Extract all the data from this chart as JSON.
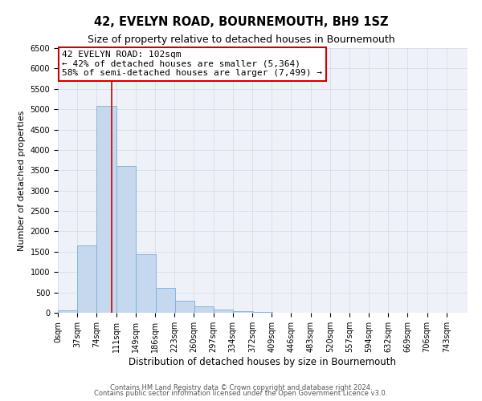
{
  "title": "42, EVELYN ROAD, BOURNEMOUTH, BH9 1SZ",
  "subtitle": "Size of property relative to detached houses in Bournemouth",
  "xlabel": "Distribution of detached houses by size in Bournemouth",
  "ylabel": "Number of detached properties",
  "bar_left_edges": [
    0,
    37,
    74,
    111,
    149,
    186,
    223,
    260,
    297,
    334,
    372,
    409,
    446,
    483,
    520,
    557,
    594,
    632,
    669,
    706
  ],
  "bar_heights": [
    50,
    1650,
    5080,
    3600,
    1430,
    610,
    300,
    150,
    80,
    30,
    10,
    5,
    2,
    0,
    0,
    0,
    0,
    0,
    0,
    0
  ],
  "bin_width": 37,
  "bar_color": "#c5d8ed",
  "bar_edge_color": "#7aafd4",
  "ylim": [
    0,
    6500
  ],
  "yticks": [
    0,
    500,
    1000,
    1500,
    2000,
    2500,
    3000,
    3500,
    4000,
    4500,
    5000,
    5500,
    6000,
    6500
  ],
  "xtick_labels": [
    "0sqm",
    "37sqm",
    "74sqm",
    "111sqm",
    "149sqm",
    "186sqm",
    "223sqm",
    "260sqm",
    "297sqm",
    "334sqm",
    "372sqm",
    "409sqm",
    "446sqm",
    "483sqm",
    "520sqm",
    "557sqm",
    "594sqm",
    "632sqm",
    "669sqm",
    "706sqm",
    "743sqm"
  ],
  "vline_x": 102,
  "vline_color": "#cc0000",
  "annotation_title": "42 EVELYN ROAD: 102sqm",
  "annotation_line1": "← 42% of detached houses are smaller (5,364)",
  "annotation_line2": "58% of semi-detached houses are larger (7,499) →",
  "annotation_box_color": "#ffffff",
  "annotation_box_edge_color": "#cc0000",
  "footer_line1": "Contains HM Land Registry data © Crown copyright and database right 2024.",
  "footer_line2": "Contains public sector information licensed under the Open Government Licence v3.0.",
  "grid_color": "#d0d8e8",
  "background_color": "#eef2f8",
  "title_fontsize": 10.5,
  "subtitle_fontsize": 9,
  "xlabel_fontsize": 8.5,
  "ylabel_fontsize": 8,
  "tick_fontsize": 7,
  "annotation_fontsize": 8,
  "footer_fontsize": 6,
  "xlim_max": 780
}
